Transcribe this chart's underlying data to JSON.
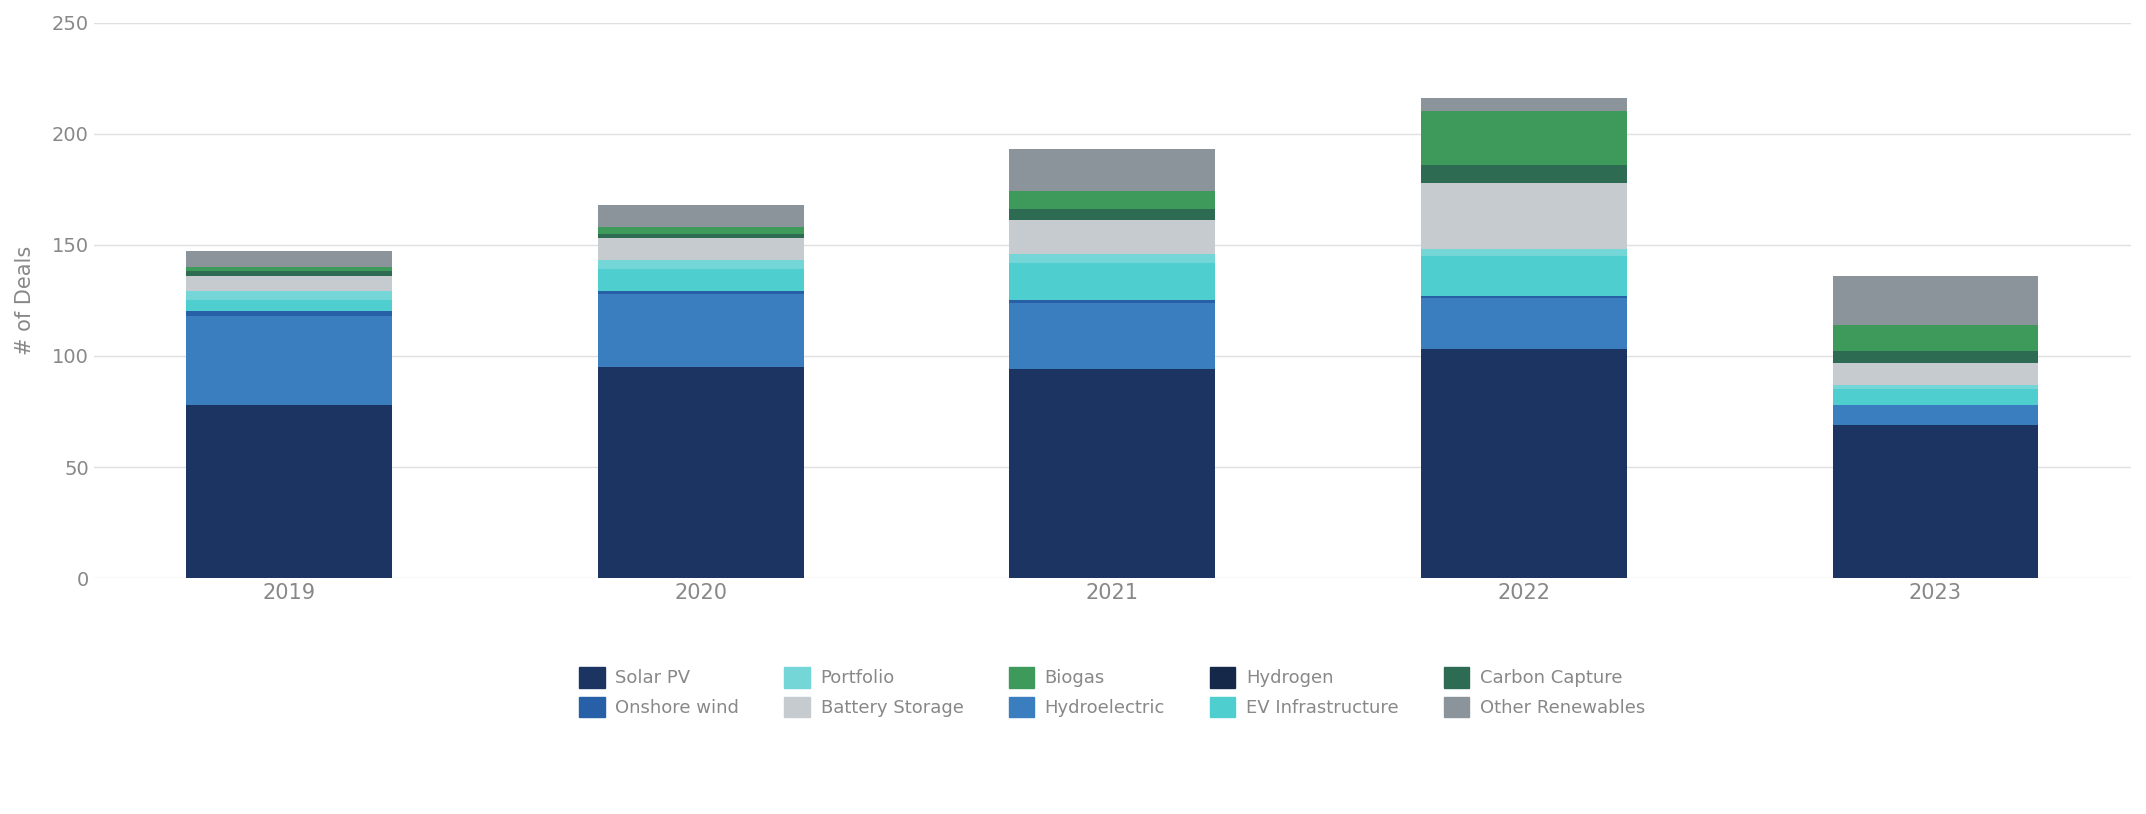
{
  "years": [
    "2019",
    "2020",
    "2021",
    "2022",
    "2023"
  ],
  "stack_order": [
    "Solar PV",
    "Hydroelectric",
    "Onshore wind",
    "Hydrogen",
    "EV Infrastructure",
    "Portfolio",
    "Battery Storage",
    "Carbon Capture",
    "Biogas",
    "Other Renewables"
  ],
  "colors": {
    "Solar PV": "#1C3461",
    "Hydroelectric": "#3A7EC0",
    "Onshore wind": "#2860A8",
    "Hydrogen": "#152849",
    "EV Infrastructure": "#4ECECE",
    "Portfolio": "#74D6D6",
    "Battery Storage": "#C5CBCE",
    "Carbon Capture": "#2D6B52",
    "Biogas": "#3D9A5A",
    "Other Renewables": "#8B949A"
  },
  "values": {
    "Solar PV": [
      78,
      95,
      94,
      103,
      69
    ],
    "Hydroelectric": [
      40,
      33,
      30,
      23,
      9
    ],
    "Onshore wind": [
      2,
      1,
      1,
      1,
      0
    ],
    "Hydrogen": [
      0,
      0,
      0,
      0,
      0
    ],
    "EV Infrastructure": [
      5,
      10,
      17,
      18,
      7
    ],
    "Portfolio": [
      4,
      4,
      4,
      3,
      2
    ],
    "Battery Storage": [
      7,
      10,
      15,
      30,
      10
    ],
    "Carbon Capture": [
      2,
      2,
      5,
      8,
      5
    ],
    "Biogas": [
      2,
      3,
      8,
      24,
      12
    ],
    "Other Renewables": [
      7,
      10,
      19,
      6,
      22
    ]
  },
  "legend_order": [
    "Solar PV",
    "Onshore wind",
    "Portfolio",
    "Battery Storage",
    "Biogas",
    "Hydroelectric",
    "Hydrogen",
    "EV Infrastructure",
    "Carbon Capture",
    "Other Renewables"
  ],
  "ylabel": "# of Deals",
  "ylim": [
    0,
    250
  ],
  "yticks": [
    0,
    50,
    100,
    150,
    200,
    250
  ],
  "background_color": "#FFFFFF",
  "grid_color": "#E0E0E0",
  "bar_width": 0.5,
  "figsize": [
    21.46,
    8.14
  ],
  "dpi": 100,
  "tick_color": "#888888",
  "label_color": "#888888"
}
